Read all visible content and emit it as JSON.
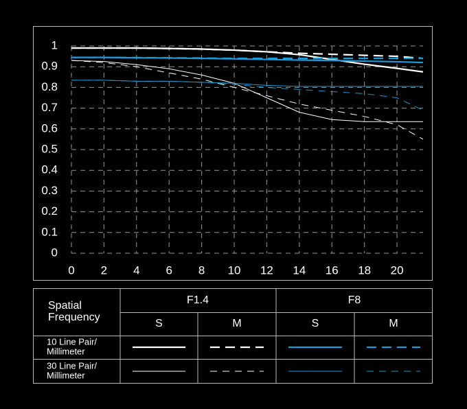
{
  "chart_data": {
    "type": "line",
    "x": [
      0,
      2,
      4,
      6,
      8,
      10,
      12,
      14,
      16,
      18,
      20,
      21.6
    ],
    "xlim": [
      0,
      21.6
    ],
    "xticks": [
      0,
      2,
      4,
      6,
      8,
      10,
      12,
      14,
      16,
      18,
      20
    ],
    "ylim": [
      0,
      1
    ],
    "yticks": [
      0,
      0.1,
      0.2,
      0.3,
      0.4,
      0.5,
      0.6,
      0.7,
      0.8,
      0.9,
      1
    ],
    "grid": true,
    "series": [
      {
        "color": "#ffffff",
        "dash": "solid",
        "width": 2.2,
        "values": [
          0.99,
          0.99,
          0.99,
          0.988,
          0.985,
          0.98,
          0.972,
          0.958,
          0.935,
          0.912,
          0.892,
          0.875
        ]
      },
      {
        "color": "#ffffff",
        "dash": "dashed",
        "width": 2.2,
        "values": [
          0.99,
          0.99,
          0.99,
          0.988,
          0.985,
          0.98,
          0.972,
          0.965,
          0.96,
          0.955,
          0.95,
          0.94
        ]
      },
      {
        "color": "#1a9ad6",
        "dash": "solid",
        "width": 2.2,
        "values": [
          0.945,
          0.945,
          0.943,
          0.942,
          0.94,
          0.938,
          0.935,
          0.932,
          0.93,
          0.927,
          0.924,
          0.92
        ]
      },
      {
        "color": "#1a9ad6",
        "dash": "dashed",
        "width": 2.2,
        "values": [
          0.945,
          0.945,
          0.944,
          0.943,
          0.942,
          0.94,
          0.94,
          0.94,
          0.94,
          0.94,
          0.94,
          0.94
        ]
      },
      {
        "color": "#ffffff",
        "dash": "solid",
        "width": 1,
        "values": [
          0.93,
          0.925,
          0.91,
          0.89,
          0.86,
          0.82,
          0.75,
          0.68,
          0.645,
          0.635,
          0.635,
          0.635
        ]
      },
      {
        "color": "#ffffff",
        "dash": "dashed",
        "width": 1,
        "values": [
          0.93,
          0.92,
          0.9,
          0.87,
          0.84,
          0.8,
          0.76,
          0.72,
          0.69,
          0.66,
          0.62,
          0.55
        ]
      },
      {
        "color": "#1a9ad6",
        "dash": "solid",
        "width": 1,
        "values": [
          0.835,
          0.835,
          0.83,
          0.83,
          0.825,
          0.82,
          0.81,
          0.805,
          0.805,
          0.805,
          0.805,
          0.805
        ]
      },
      {
        "color": "#1a9ad6",
        "dash": "dashed",
        "width": 1,
        "values": [
          0.835,
          0.835,
          0.83,
          0.83,
          0.825,
          0.815,
          0.8,
          0.79,
          0.78,
          0.77,
          0.75,
          0.69
        ]
      }
    ]
  },
  "legend_table": {
    "row_header": [
      "Spatial",
      "Frequency"
    ],
    "apertures": [
      "F1.4",
      "F8"
    ],
    "columns": [
      "S",
      "M",
      "S",
      "M"
    ],
    "rows": [
      [
        "10 Line Pair/",
        "Millimeter"
      ],
      [
        "30 Line Pair/",
        "Millimeter"
      ]
    ]
  }
}
